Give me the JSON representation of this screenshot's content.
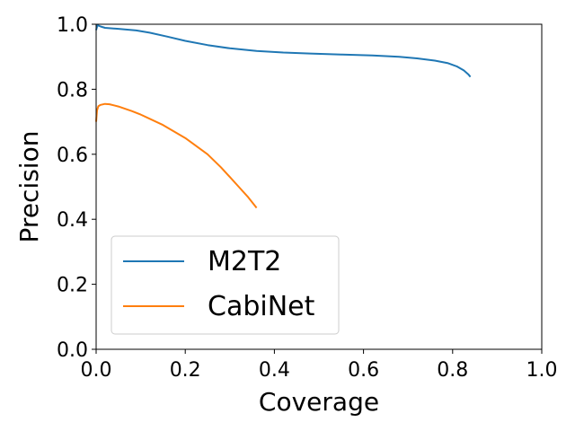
{
  "chart_data": {
    "type": "line",
    "xlabel": "Coverage",
    "ylabel": "Precision",
    "xlim": [
      0.0,
      1.0
    ],
    "ylim": [
      0.0,
      1.0
    ],
    "xticks": [
      "0.0",
      "0.2",
      "0.4",
      "0.6",
      "0.8",
      "1.0"
    ],
    "yticks": [
      "0.0",
      "0.2",
      "0.4",
      "0.6",
      "0.8",
      "1.0"
    ],
    "grid": false,
    "legend_position": "lower-left",
    "series": [
      {
        "name": "M2T2",
        "color": "#1f77b4",
        "x": [
          0.0,
          0.003,
          0.01,
          0.02,
          0.05,
          0.09,
          0.12,
          0.16,
          0.2,
          0.25,
          0.3,
          0.36,
          0.42,
          0.48,
          0.55,
          0.62,
          0.68,
          0.72,
          0.76,
          0.79,
          0.81,
          0.825,
          0.835,
          0.84
        ],
        "y": [
          0.982,
          0.997,
          0.993,
          0.989,
          0.986,
          0.981,
          0.974,
          0.962,
          0.949,
          0.936,
          0.926,
          0.918,
          0.913,
          0.91,
          0.907,
          0.904,
          0.9,
          0.895,
          0.888,
          0.88,
          0.87,
          0.858,
          0.846,
          0.838
        ]
      },
      {
        "name": "CabiNet",
        "color": "#ff7f0e",
        "x": [
          0.0,
          0.002,
          0.005,
          0.01,
          0.02,
          0.03,
          0.05,
          0.08,
          0.1,
          0.15,
          0.2,
          0.25,
          0.28,
          0.3,
          0.32,
          0.34,
          0.36
        ],
        "y": [
          0.7,
          0.735,
          0.748,
          0.752,
          0.755,
          0.754,
          0.747,
          0.733,
          0.722,
          0.69,
          0.65,
          0.6,
          0.56,
          0.53,
          0.5,
          0.47,
          0.435
        ]
      }
    ]
  }
}
